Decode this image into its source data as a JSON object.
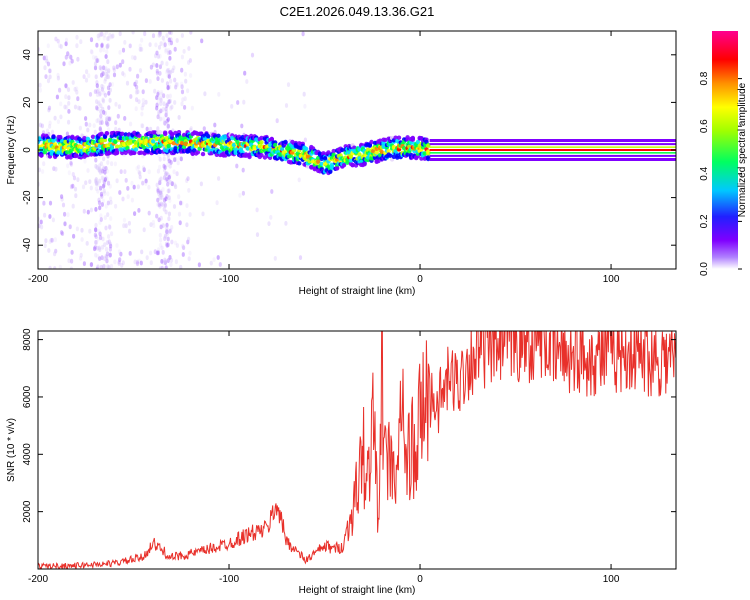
{
  "figure_title": "C2E1.2026.049.13.36.G21",
  "chart_data": [
    {
      "type": "heatmap",
      "title": "C2E1.2026.049.13.36.G21",
      "xlabel": "Height of straight line (km)",
      "ylabel": "Frequency (Hz)",
      "xlim": [
        -200,
        134
      ],
      "ylim": [
        -50,
        50
      ],
      "xticks": [
        -200,
        -100,
        0,
        100
      ],
      "xtick_labels": [
        "-200",
        "-100",
        "0",
        "100"
      ],
      "yticks": [
        -40,
        -20,
        0,
        20,
        40
      ],
      "ytick_labels": [
        "-40",
        "-20",
        "0",
        "20",
        "40"
      ],
      "colorbar": {
        "label": "Normalized spectral amplitude",
        "range": [
          0,
          1
        ],
        "ticks": [
          0,
          0.2,
          0.4,
          0.6,
          0.8
        ],
        "tick_labels": [
          "0.0",
          "0.2",
          "0.4",
          "0.6",
          "0.8"
        ],
        "colormap": [
          "#e6d6fa",
          "#8000ff",
          "#0000ff",
          "#00e0ff",
          "#00ff40",
          "#c0ff00",
          "#ffff00",
          "#ff8000",
          "#ff0000",
          "#ff0090"
        ]
      },
      "ridge": {
        "description": "dominant frequency band vs height",
        "x": [
          -200,
          -180,
          -160,
          -140,
          -120,
          -100,
          -80,
          -60,
          -50,
          -40,
          -30,
          -20,
          -10,
          0,
          5,
          134
        ],
        "y": [
          2,
          1,
          3,
          3,
          3,
          2,
          1,
          -2,
          -6,
          -3,
          -2,
          0,
          1,
          1,
          0,
          0
        ]
      }
    },
    {
      "type": "line",
      "xlabel": "Height of straight line (km)",
      "ylabel": "SNR (10 * v/v)",
      "xlim": [
        -200,
        134
      ],
      "ylim": [
        0,
        8300
      ],
      "xticks": [
        -200,
        -100,
        0,
        100
      ],
      "xtick_labels": [
        "-200",
        "-100",
        "0",
        "100"
      ],
      "yticks": [
        2000,
        4000,
        6000,
        8000
      ],
      "ytick_labels": [
        "2000",
        "4000",
        "6000",
        "8000"
      ],
      "color": "#e8302a",
      "series": [
        {
          "name": "SNR",
          "x": [
            -200,
            -180,
            -160,
            -145,
            -140,
            -130,
            -115,
            -100,
            -90,
            -80,
            -75,
            -70,
            -60,
            -50,
            -45,
            -40,
            -35,
            -32,
            -30,
            -28,
            -25,
            -22,
            -20,
            -18,
            -15,
            -12,
            -10,
            -7,
            -5,
            -2,
            0,
            5,
            10,
            15,
            20,
            25,
            30,
            40,
            50,
            60,
            63,
            70,
            80,
            90,
            100,
            110,
            120,
            134
          ],
          "y": [
            100,
            120,
            200,
            400,
            900,
            400,
            600,
            900,
            1200,
            1400,
            2300,
            1000,
            300,
            800,
            700,
            800,
            2200,
            3000,
            4500,
            2500,
            5500,
            2000,
            6500,
            3500,
            4000,
            2500,
            6500,
            3200,
            4600,
            3300,
            5500,
            6000,
            5800,
            6600,
            6500,
            7200,
            7600,
            7800,
            7900,
            8000,
            8200,
            7600,
            7500,
            7400,
            7500,
            7600,
            7400,
            7350
          ]
        }
      ]
    }
  ]
}
